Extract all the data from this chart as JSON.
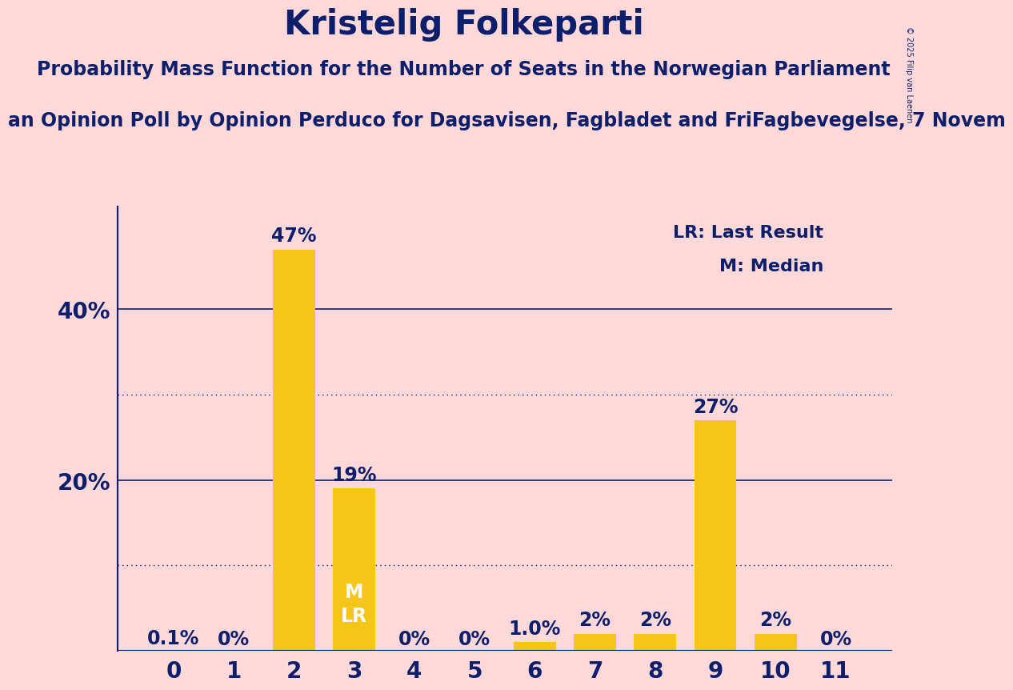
{
  "title": "Kristelig Folkeparti",
  "subtitle": "Probability Mass Function for the Number of Seats in the Norwegian Parliament",
  "subtitle2": "an Opinion Poll by Opinion Perduco for Dagsavisen, Fagbladet and FriFagbevegelse, 7 Novem",
  "copyright": "© 2025 Filip van Laenen",
  "categories": [
    0,
    1,
    2,
    3,
    4,
    5,
    6,
    7,
    8,
    9,
    10,
    11
  ],
  "values": [
    0.1,
    0.0,
    47.0,
    19.0,
    0.0,
    0.0,
    1.0,
    2.0,
    2.0,
    27.0,
    2.0,
    0.0
  ],
  "labels": [
    "0.1%",
    "0%",
    "47%",
    "19%",
    "0%",
    "0%",
    "1.0%",
    "2%",
    "2%",
    "27%",
    "2%",
    "0%"
  ],
  "bar_color": "#F5C518",
  "background_color": "#FFD9D9",
  "text_color": "#0D1F6B",
  "title_fontsize": 30,
  "subtitle_fontsize": 17,
  "subtitle2_fontsize": 17,
  "label_fontsize": 17,
  "tick_fontsize": 20,
  "ytick_labels": [
    "",
    "20%",
    "40%"
  ],
  "ytick_values": [
    0,
    20,
    40
  ],
  "ylim": [
    0,
    52
  ],
  "legend_text1": "LR: Last Result",
  "legend_text2": "M: Median",
  "median_bar": 3,
  "last_result_bar": 3,
  "dotted_lines": [
    10,
    30
  ],
  "solid_lines": [
    20,
    40
  ]
}
